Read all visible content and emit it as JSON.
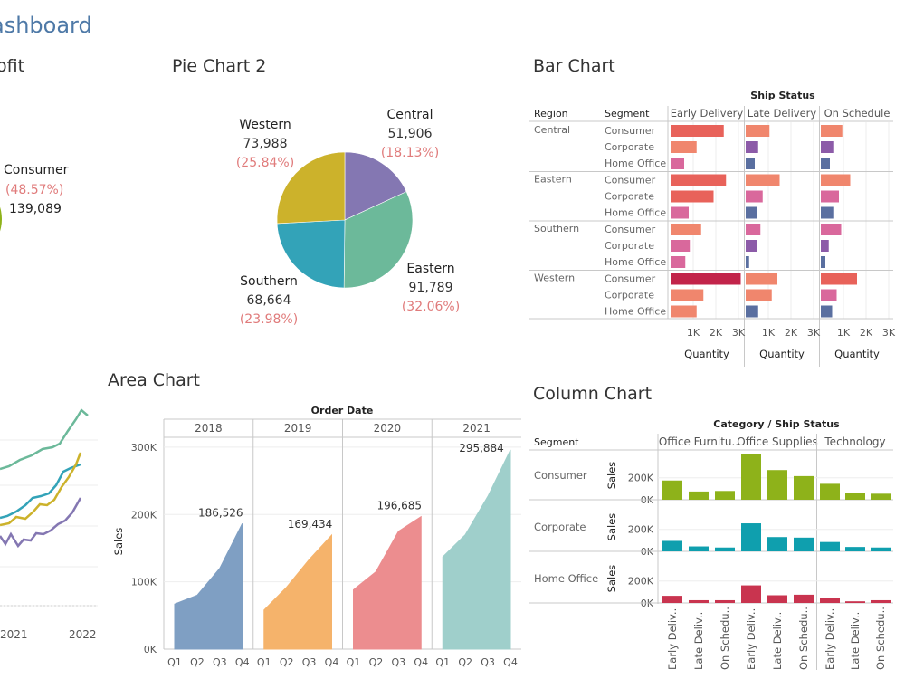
{
  "dashboard": {
    "title": "ashboard"
  },
  "sheets": {
    "profit_title": "ofit",
    "pie_title": "Pie Chart 2",
    "bar_title": "Bar Chart",
    "area_title": "Area Chart",
    "column_title": "Column Chart"
  },
  "colors": {
    "western": "#ccb22b",
    "central": "#8477b2",
    "eastern": "#6cb99a",
    "southern": "#33a3b8",
    "pct_text": "#e07b7b",
    "olive": "#8eb21a",
    "teal": "#0f9fae",
    "crimson": "#c9344f"
  },
  "chart_data": [
    {
      "id": "profit",
      "type": "line",
      "partial": true,
      "series": [
        {
          "name": "Consumer",
          "pct": "(48.57%)",
          "value": "139,089"
        }
      ],
      "x_tick_labels": [
        "2021",
        "2022"
      ]
    },
    {
      "id": "pie",
      "type": "pie",
      "slices": [
        {
          "name": "Central",
          "value": 51906,
          "value_label": "51,906",
          "pct_label": "(18.13%)",
          "color": "#8477b2"
        },
        {
          "name": "Eastern",
          "value": 91789,
          "value_label": "91,789",
          "pct_label": "(32.06%)",
          "color": "#6cb99a"
        },
        {
          "name": "Southern",
          "value": 68664,
          "value_label": "68,664",
          "pct_label": "(23.98%)",
          "color": "#33a3b8"
        },
        {
          "name": "Western",
          "value": 73988,
          "value_label": "73,988",
          "pct_label": "(25.84%)",
          "color": "#ccb22b"
        }
      ]
    },
    {
      "id": "bar",
      "type": "bar",
      "orientation": "horizontal",
      "column_group_label": "Ship Status",
      "header_region": "Region",
      "header_segment": "Segment",
      "columns": [
        "Early Delivery",
        "Late Delivery",
        "On Schedule"
      ],
      "xlabel": "Quantity",
      "x_ticks": [
        "1K",
        "2K",
        "3K"
      ],
      "xlim": [
        0,
        3200
      ],
      "regions": [
        {
          "name": "Central",
          "rows": [
            {
              "segment": "Consumer",
              "values": [
                2350,
                1050,
                950
              ]
            },
            {
              "segment": "Corporate",
              "values": [
                1150,
                550,
                550
              ]
            },
            {
              "segment": "Home Office",
              "values": [
                600,
                400,
                400
              ]
            }
          ]
        },
        {
          "name": "Eastern",
          "rows": [
            {
              "segment": "Consumer",
              "values": [
                2450,
                1500,
                1300
              ]
            },
            {
              "segment": "Corporate",
              "values": [
                1900,
                750,
                800
              ]
            },
            {
              "segment": "Home Office",
              "values": [
                800,
                500,
                550
              ]
            }
          ]
        },
        {
          "name": "Southern",
          "rows": [
            {
              "segment": "Consumer",
              "values": [
                1350,
                650,
                900
              ]
            },
            {
              "segment": "Corporate",
              "values": [
                850,
                500,
                350
              ]
            },
            {
              "segment": "Home Office",
              "values": [
                650,
                150,
                200
              ]
            }
          ]
        },
        {
          "name": "Western",
          "rows": [
            {
              "segment": "Consumer",
              "values": [
                3100,
                1400,
                1600
              ]
            },
            {
              "segment": "Corporate",
              "values": [
                1450,
                1150,
                700
              ]
            },
            {
              "segment": "Home Office",
              "values": [
                1150,
                550,
                500
              ]
            }
          ]
        }
      ]
    },
    {
      "id": "area",
      "type": "area",
      "column_group_label": "Order Date",
      "ylabel": "Sales",
      "ylim": [
        0,
        320000
      ],
      "y_ticks": [
        {
          "v": 0,
          "label": "0K"
        },
        {
          "v": 100000,
          "label": "100K"
        },
        {
          "v": 200000,
          "label": "200K"
        },
        {
          "v": 300000,
          "label": "300K"
        }
      ],
      "quarters": [
        "Q1",
        "Q2",
        "Q3",
        "Q4"
      ],
      "years": [
        {
          "year": "2018",
          "values": [
            67000,
            80000,
            120000,
            186526
          ],
          "label": "186,526",
          "color": "#7f9fc3"
        },
        {
          "year": "2019",
          "values": [
            58000,
            92000,
            133000,
            169434
          ],
          "label": "169,434",
          "color": "#f5b36b"
        },
        {
          "year": "2020",
          "values": [
            88000,
            115000,
            175000,
            196685
          ],
          "label": "196,685",
          "color": "#ec8d8f"
        },
        {
          "year": "2021",
          "values": [
            137000,
            170000,
            227000,
            295884
          ],
          "label": "295,884",
          "color": "#9fcfcb"
        }
      ]
    },
    {
      "id": "column",
      "type": "bar",
      "orientation": "vertical",
      "column_group_label": "Category / Ship Status",
      "header_segment": "Segment",
      "ylabel": "Sales",
      "y_ticks": [
        "0K",
        "200K"
      ],
      "ylim": [
        0,
        420000
      ],
      "categories": [
        "Office Furnitu..",
        "Office Supplies",
        "Technology"
      ],
      "statuses": [
        "Early Deliv..",
        "Late Deliv..",
        "On Schedu.."
      ],
      "segments": [
        {
          "name": "Consumer",
          "color": "#8eb21a",
          "values": [
            [
              175000,
              75000,
              80000
            ],
            [
              415000,
              270000,
              215000
            ],
            [
              145000,
              65000,
              55000
            ]
          ]
        },
        {
          "name": "Corporate",
          "color": "#0f9fae",
          "values": [
            [
              95000,
              45000,
              35000
            ],
            [
              255000,
              130000,
              125000
            ],
            [
              85000,
              40000,
              35000
            ]
          ]
        },
        {
          "name": "Home Office",
          "color": "#c9344f",
          "values": [
            [
              65000,
              25000,
              25000
            ],
            [
              160000,
              70000,
              75000
            ],
            [
              45000,
              15000,
              25000
            ]
          ]
        }
      ]
    }
  ]
}
